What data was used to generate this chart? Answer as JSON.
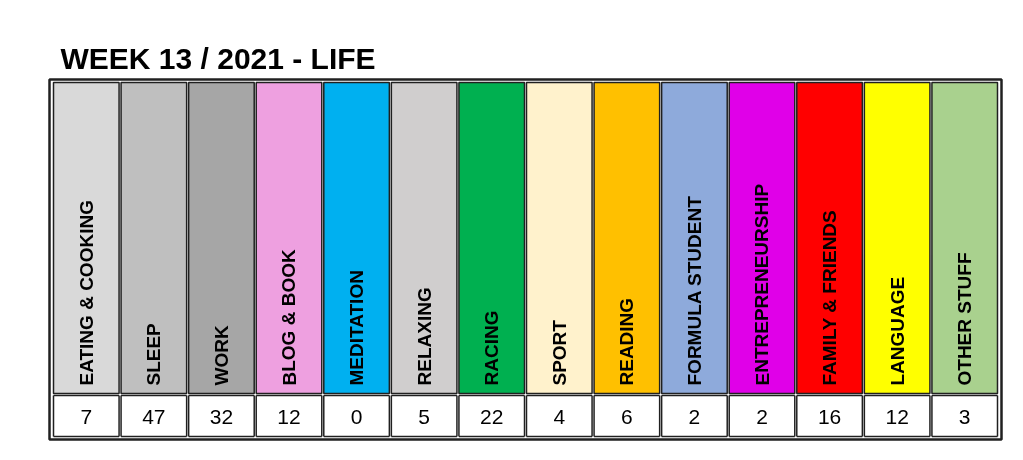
{
  "chart_data": {
    "type": "other",
    "title": "WEEK 13 / 2021 - LIFE",
    "categories": [
      "EATING & COOKING",
      "SLEEP",
      "WORK",
      "BLOG & BOOK",
      "MEDITATION",
      "RELAXING",
      "RACING",
      "SPORT",
      "READING",
      "FORMULA STUDENT",
      "ENTREPRENEURSHIP",
      "FAMILY & FRIENDS",
      "LANGUAGE",
      "OTHER STUFF"
    ],
    "values": [
      7,
      47,
      32,
      12,
      0,
      5,
      22,
      4,
      6,
      2,
      2,
      16,
      12,
      3
    ],
    "colors": [
      "#d9d9d9",
      "#bfbfbf",
      "#a6a6a6",
      "#eea0e0",
      "#00b0f0",
      "#d0cece",
      "#00b050",
      "#fff2cc",
      "#ffc000",
      "#8eaadb",
      "#e000e8",
      "#ff0000",
      "#ffff00",
      "#a9d18e"
    ],
    "data_labels": true
  }
}
